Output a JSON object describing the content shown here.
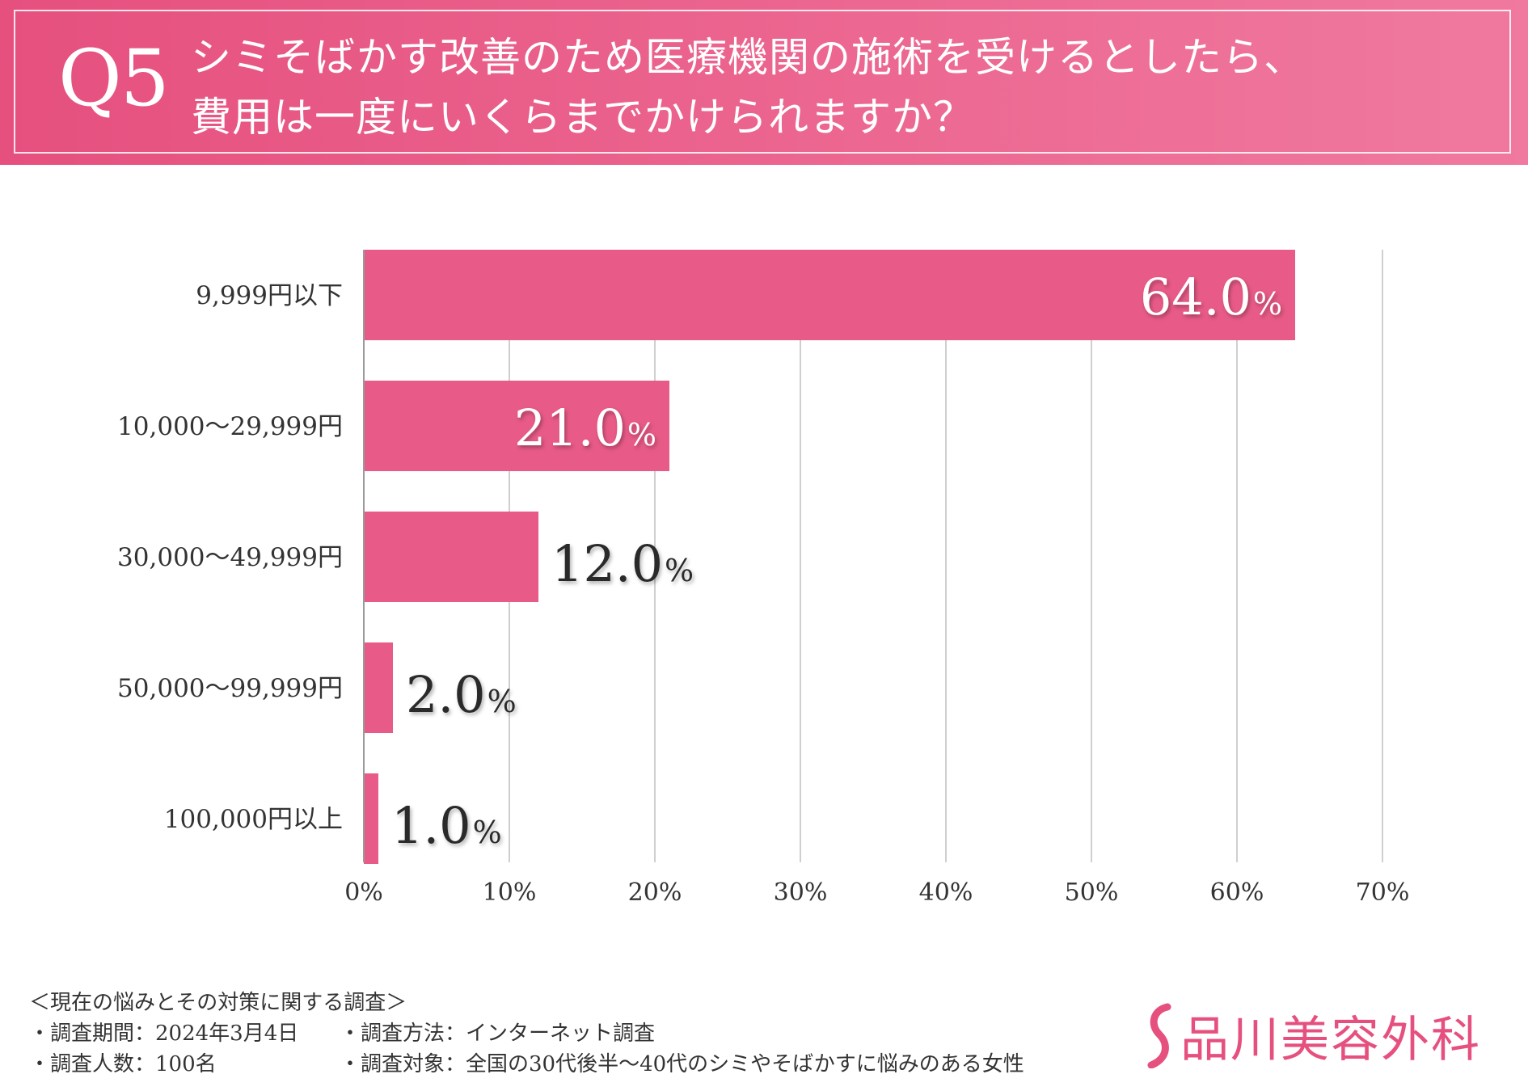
{
  "header": {
    "number": "Q5",
    "question_line1": "シミそばかす改善のため医療機関の施術を受けるとしたら、",
    "question_line2": "費用は一度にいくらまでかけられますか？"
  },
  "chart_data": {
    "type": "bar",
    "orientation": "horizontal",
    "categories": [
      "9,999円以下",
      "10,000〜29,999円",
      "30,000〜49,999円",
      "50,000〜99,999円",
      "100,000円以上"
    ],
    "values": [
      64.0,
      21.0,
      12.0,
      2.0,
      1.0
    ],
    "value_labels": [
      "64.0",
      "21.0",
      "12.0",
      "2.0",
      "1.0"
    ],
    "value_suffix": "%",
    "xlim": [
      0,
      70
    ],
    "xticks": [
      "0%",
      "10%",
      "20%",
      "30%",
      "40%",
      "50%",
      "60%",
      "70%"
    ],
    "grid": true,
    "bar_color": "#e85a87",
    "title": "",
    "xlabel": "",
    "ylabel": ""
  },
  "footer": {
    "survey_title": "＜現在の悩みとその対策に関する調査＞",
    "period": "・調査期間：2024年3月4日",
    "method": "・調査方法：インターネット調査",
    "respondents": "・調査人数：100名",
    "target": "・調査対象：全国の30代後半〜40代のシミやそばかすに悩みのある女性"
  },
  "logo": {
    "text": "品川美容外科",
    "color": "#e6507f"
  }
}
